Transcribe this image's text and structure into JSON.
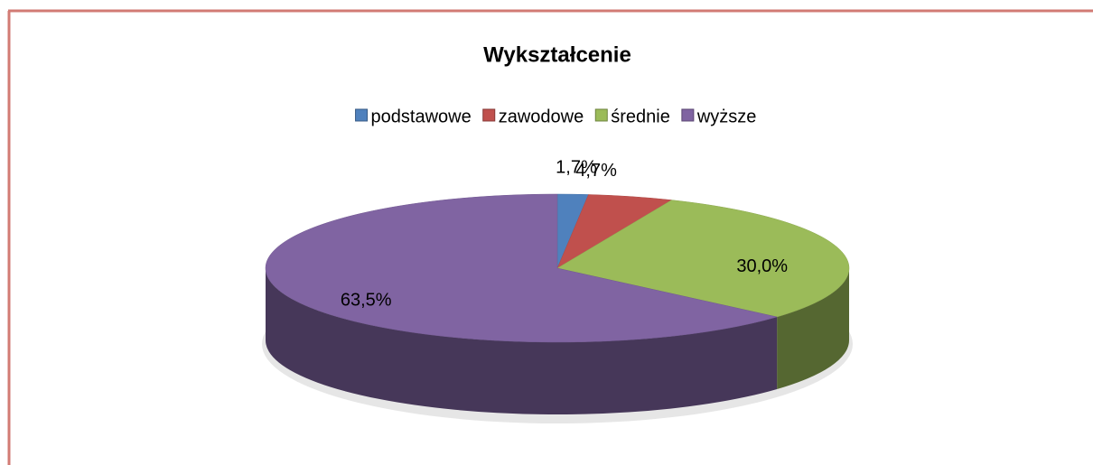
{
  "chart_data": {
    "type": "pie",
    "title": "Wykształcenie",
    "categories": [
      "podstawowe",
      "zawodowe",
      "średnie",
      "wyższe"
    ],
    "values": [
      1.7,
      4.7,
      30.0,
      63.5
    ],
    "value_labels": [
      "1,7%",
      "4,7%",
      "30,0%",
      "63,5%"
    ],
    "colors": [
      "#4f81bd",
      "#c0504d",
      "#9bbb59",
      "#8064a2"
    ],
    "legend": "top"
  }
}
